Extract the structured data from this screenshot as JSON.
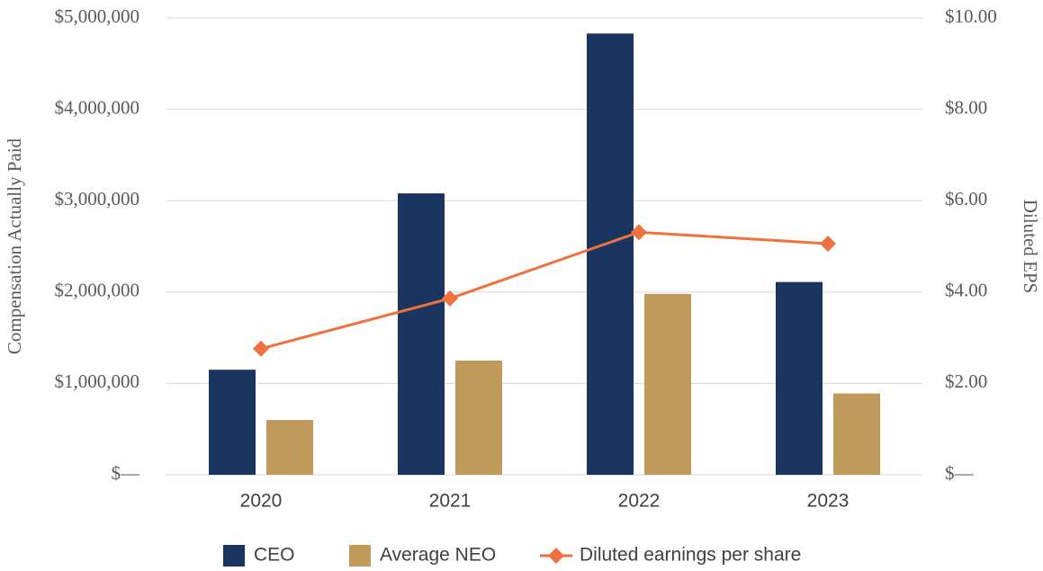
{
  "chart_data": {
    "type": "bar",
    "categories": [
      "2020",
      "2021",
      "2022",
      "2023"
    ],
    "y_label": "Compensation Actually Paid",
    "y2_label": "Diluted EPS",
    "ylim": [
      0,
      5000000
    ],
    "yticks": [
      {
        "value": 0,
        "label": "$—"
      },
      {
        "value": 1000000,
        "label": "$1,000,000"
      },
      {
        "value": 2000000,
        "label": "$2,000,000"
      },
      {
        "value": 3000000,
        "label": "$3,000,000"
      },
      {
        "value": 4000000,
        "label": "$4,000,000"
      },
      {
        "value": 5000000,
        "label": "$5,000,000"
      }
    ],
    "y2lim": [
      0,
      10
    ],
    "y2ticks": [
      {
        "value": 0,
        "label": "$—"
      },
      {
        "value": 2,
        "label": "$2.00"
      },
      {
        "value": 4,
        "label": "$4.00"
      },
      {
        "value": 6,
        "label": "$6.00"
      },
      {
        "value": 8,
        "label": "$8.00"
      },
      {
        "value": 10,
        "label": "$10.00"
      }
    ],
    "grid": true,
    "legend": "bottom",
    "series": [
      {
        "name": "CEO",
        "type": "bar",
        "color": "#1b3561",
        "values": [
          1150000,
          3080000,
          4830000,
          2110000
        ]
      },
      {
        "name": "Average NEO",
        "type": "bar",
        "color": "#c09a5b",
        "values": [
          600000,
          1250000,
          1980000,
          890000
        ]
      },
      {
        "name": "Diluted earnings per share",
        "type": "line",
        "axis": "y2",
        "color": "#ee7240",
        "values": [
          2.76,
          3.86,
          5.31,
          5.06
        ]
      }
    ]
  }
}
